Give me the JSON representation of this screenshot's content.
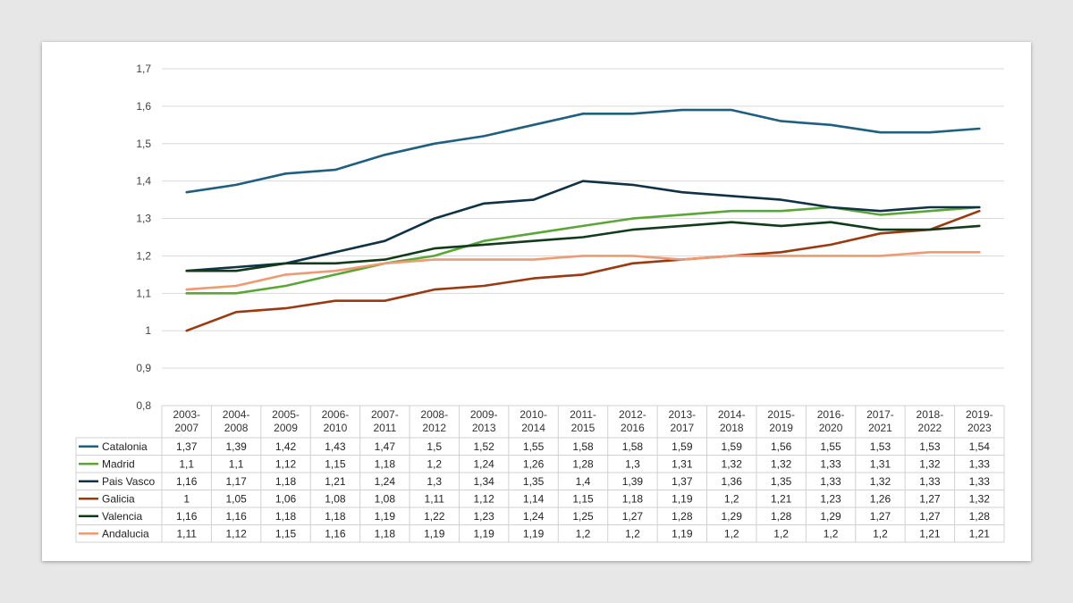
{
  "chart_data": {
    "type": "line",
    "categories": [
      "2003-2007",
      "2004-2008",
      "2005-2009",
      "2006-2010",
      "2007-2011",
      "2008-2012",
      "2009-2013",
      "2010-2014",
      "2011-2015",
      "2012-2016",
      "2013-2017",
      "2014-2018",
      "2015-2019",
      "2016-2020",
      "2017-2021",
      "2018-2022",
      "2019-2023"
    ],
    "category_lines": [
      [
        "2003-",
        "2007"
      ],
      [
        "2004-",
        "2008"
      ],
      [
        "2005-",
        "2009"
      ],
      [
        "2006-",
        "2010"
      ],
      [
        "2007-",
        "2011"
      ],
      [
        "2008-",
        "2012"
      ],
      [
        "2009-",
        "2013"
      ],
      [
        "2010-",
        "2014"
      ],
      [
        "2011-",
        "2015"
      ],
      [
        "2012-",
        "2016"
      ],
      [
        "2013-",
        "2017"
      ],
      [
        "2014-",
        "2018"
      ],
      [
        "2015-",
        "2019"
      ],
      [
        "2016-",
        "2020"
      ],
      [
        "2017-",
        "2021"
      ],
      [
        "2018-",
        "2022"
      ],
      [
        "2019-",
        "2023"
      ]
    ],
    "ylim": [
      0.8,
      1.7
    ],
    "yticks": [
      0.8,
      0.9,
      1.0,
      1.1,
      1.2,
      1.3,
      1.4,
      1.5,
      1.6,
      1.7
    ],
    "ytick_labels": [
      "0,8",
      "0,9",
      "1",
      "1,1",
      "1,2",
      "1,3",
      "1,4",
      "1,5",
      "1,6",
      "1,7"
    ],
    "grid": true,
    "legend": "data-table",
    "series": [
      {
        "name": "Catalonia",
        "color": "#1f5f7f",
        "values": [
          1.37,
          1.39,
          1.42,
          1.43,
          1.47,
          1.5,
          1.52,
          1.55,
          1.58,
          1.58,
          1.59,
          1.59,
          1.56,
          1.55,
          1.53,
          1.53,
          1.54
        ],
        "labels": [
          "1,37",
          "1,39",
          "1,42",
          "1,43",
          "1,47",
          "1,5",
          "1,52",
          "1,55",
          "1,58",
          "1,58",
          "1,59",
          "1,59",
          "1,56",
          "1,55",
          "1,53",
          "1,53",
          "1,54"
        ]
      },
      {
        "name": "Madrid",
        "color": "#5aa637",
        "values": [
          1.1,
          1.1,
          1.12,
          1.15,
          1.18,
          1.2,
          1.24,
          1.26,
          1.28,
          1.3,
          1.31,
          1.32,
          1.32,
          1.33,
          1.31,
          1.32,
          1.33
        ],
        "labels": [
          "1,1",
          "1,1",
          "1,12",
          "1,15",
          "1,18",
          "1,2",
          "1,24",
          "1,26",
          "1,28",
          "1,3",
          "1,31",
          "1,32",
          "1,32",
          "1,33",
          "1,31",
          "1,32",
          "1,33"
        ]
      },
      {
        "name": "Pais Vasco",
        "color": "#0f3245",
        "values": [
          1.16,
          1.17,
          1.18,
          1.21,
          1.24,
          1.3,
          1.34,
          1.35,
          1.4,
          1.39,
          1.37,
          1.36,
          1.35,
          1.33,
          1.32,
          1.33,
          1.33
        ],
        "labels": [
          "1,16",
          "1,17",
          "1,18",
          "1,21",
          "1,24",
          "1,3",
          "1,34",
          "1,35",
          "1,4",
          "1,39",
          "1,37",
          "1,36",
          "1,35",
          "1,33",
          "1,32",
          "1,33",
          "1,33"
        ]
      },
      {
        "name": "Galicia",
        "color": "#9a3a10",
        "values": [
          1.0,
          1.05,
          1.06,
          1.08,
          1.08,
          1.11,
          1.12,
          1.14,
          1.15,
          1.18,
          1.19,
          1.2,
          1.21,
          1.23,
          1.26,
          1.27,
          1.32
        ],
        "labels": [
          "1",
          "1,05",
          "1,06",
          "1,08",
          "1,08",
          "1,11",
          "1,12",
          "1,14",
          "1,15",
          "1,18",
          "1,19",
          "1,2",
          "1,21",
          "1,23",
          "1,26",
          "1,27",
          "1,32"
        ]
      },
      {
        "name": "Valencia",
        "color": "#123b1c",
        "values": [
          1.16,
          1.16,
          1.18,
          1.18,
          1.19,
          1.22,
          1.23,
          1.24,
          1.25,
          1.27,
          1.28,
          1.29,
          1.28,
          1.29,
          1.27,
          1.27,
          1.28
        ],
        "labels": [
          "1,16",
          "1,16",
          "1,18",
          "1,18",
          "1,19",
          "1,22",
          "1,23",
          "1,24",
          "1,25",
          "1,27",
          "1,28",
          "1,29",
          "1,28",
          "1,29",
          "1,27",
          "1,27",
          "1,28"
        ]
      },
      {
        "name": "Andalucia",
        "color": "#ee9a72",
        "values": [
          1.11,
          1.12,
          1.15,
          1.16,
          1.18,
          1.19,
          1.19,
          1.19,
          1.2,
          1.2,
          1.19,
          1.2,
          1.2,
          1.2,
          1.2,
          1.21,
          1.21
        ],
        "labels": [
          "1,11",
          "1,12",
          "1,15",
          "1,16",
          "1,18",
          "1,19",
          "1,19",
          "1,19",
          "1,2",
          "1,2",
          "1,19",
          "1,2",
          "1,2",
          "1,2",
          "1,2",
          "1,21",
          "1,21"
        ]
      }
    ]
  }
}
